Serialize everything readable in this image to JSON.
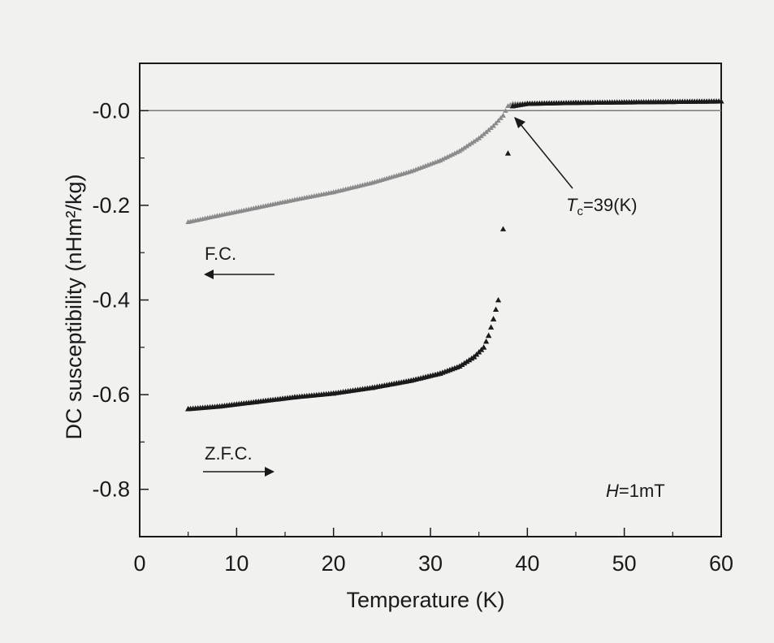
{
  "chart_data": {
    "type": "scatter",
    "xlabel": "Temperature (K)",
    "ylabel": "DC susceptibility (nHm²/kg)",
    "xlim": [
      0,
      60
    ],
    "ylim": [
      -0.9,
      0.1
    ],
    "x_ticks": [
      "0",
      "10",
      "20",
      "30",
      "40",
      "50",
      "60"
    ],
    "y_ticks": [
      "-0.0",
      "-0.2",
      "-0.4",
      "-0.6",
      "-0.8"
    ],
    "grid": false,
    "reference_line_y": 0.0,
    "annotations": {
      "fc": "F.C.",
      "zfc": "Z.F.C.",
      "tc_symbol": "T",
      "tc_subscript": "c",
      "tc_value": "=39(K)",
      "field_symbol": "H",
      "field_value": "=1mT"
    },
    "series": [
      {
        "label_ref": "F.C.",
        "color": "#8a8a8a",
        "x": [
          5,
          8,
          12,
          16,
          20,
          24,
          28,
          31,
          33,
          35,
          36.5,
          37.5,
          38,
          38.5,
          40,
          45,
          50,
          55,
          60
        ],
        "y": [
          -0.235,
          -0.222,
          -0.205,
          -0.188,
          -0.172,
          -0.152,
          -0.128,
          -0.105,
          -0.085,
          -0.058,
          -0.032,
          -0.01,
          0.01,
          0.015,
          0.015,
          0.017,
          0.018,
          0.019,
          0.02
        ]
      },
      {
        "label_ref": "Z.F.C.",
        "color": "#1a1a1a",
        "x": [
          5,
          8,
          12,
          16,
          20,
          24,
          28,
          31,
          33,
          34.5,
          35.5,
          36,
          36.5,
          37,
          37.5,
          38,
          38.5,
          40,
          45,
          50,
          55,
          60
        ],
        "y": [
          -0.63,
          -0.625,
          -0.615,
          -0.605,
          -0.597,
          -0.585,
          -0.57,
          -0.555,
          -0.54,
          -0.52,
          -0.5,
          -0.475,
          -0.44,
          -0.4,
          -0.25,
          -0.09,
          0.01,
          0.015,
          0.017,
          0.018,
          0.019,
          0.02
        ]
      }
    ]
  }
}
